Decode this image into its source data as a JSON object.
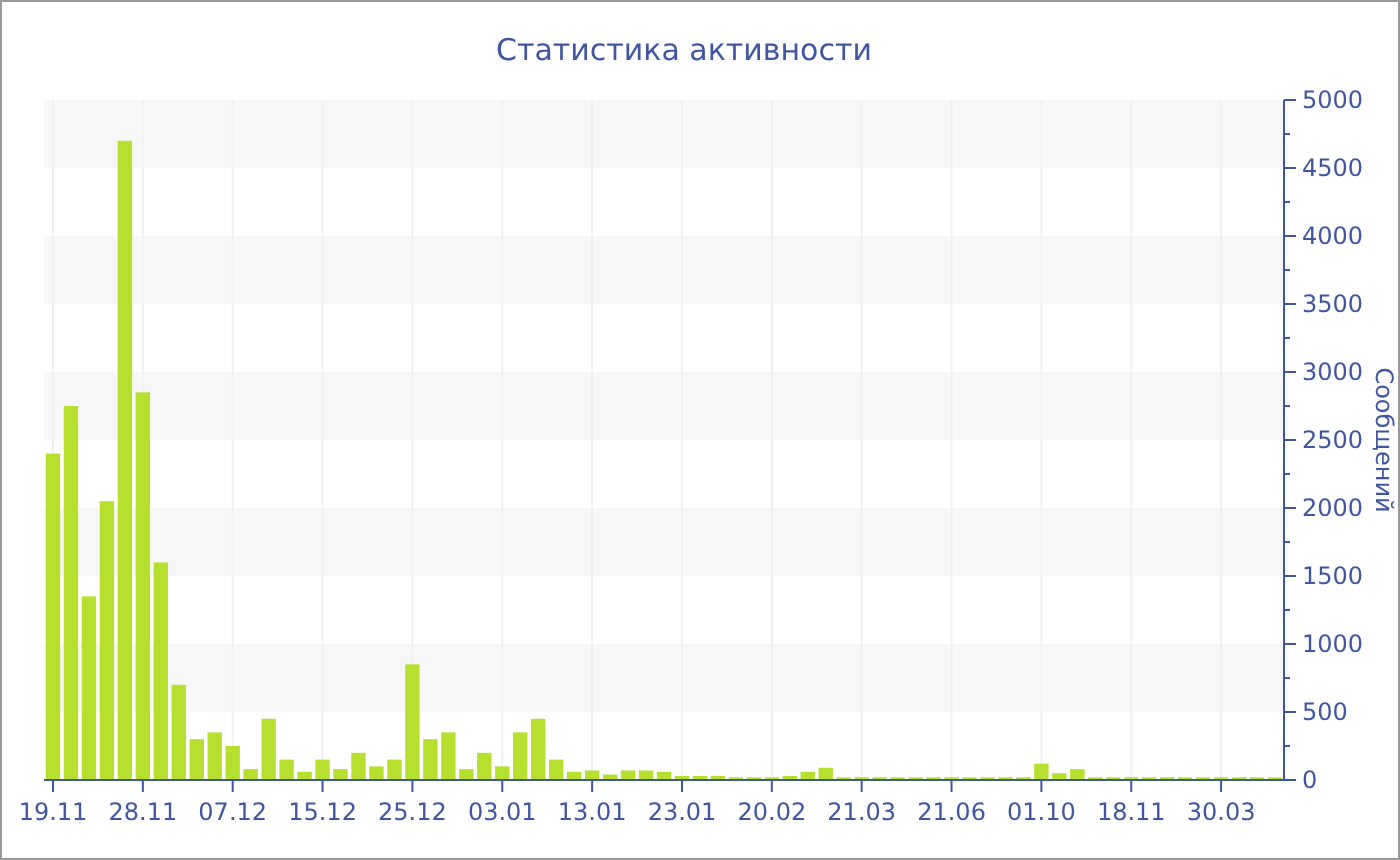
{
  "chart_data": {
    "type": "bar",
    "title": "Статистика активности",
    "ylabel": "Сообщений",
    "categories": [
      "19.11",
      null,
      null,
      null,
      null,
      "28.11",
      null,
      null,
      null,
      null,
      "07.12",
      null,
      null,
      null,
      null,
      "15.12",
      null,
      null,
      null,
      null,
      "25.12",
      null,
      null,
      null,
      null,
      "03.01",
      null,
      null,
      null,
      null,
      "13.01",
      null,
      null,
      null,
      null,
      "23.01",
      null,
      null,
      null,
      null,
      "20.02",
      null,
      null,
      null,
      null,
      "21.03",
      null,
      null,
      null,
      null,
      "21.06",
      null,
      null,
      null,
      null,
      "01.10",
      null,
      null,
      null,
      null,
      "18.11",
      null,
      null,
      null,
      null,
      "30.03",
      null,
      null,
      null
    ],
    "values": [
      2400,
      2750,
      1350,
      2050,
      4700,
      2850,
      1600,
      700,
      300,
      350,
      250,
      80,
      450,
      150,
      60,
      150,
      80,
      200,
      100,
      150,
      850,
      300,
      350,
      80,
      200,
      100,
      350,
      450,
      150,
      60,
      70,
      40,
      70,
      70,
      60,
      30,
      30,
      30,
      20,
      20,
      20,
      30,
      60,
      90,
      20,
      20,
      20,
      20,
      20,
      20,
      20,
      20,
      20,
      20,
      20,
      120,
      50,
      80,
      20,
      20,
      20,
      20,
      20,
      20,
      20,
      20,
      20,
      20,
      20
    ],
    "color": "#b5e02e",
    "ylim": [
      0,
      5000
    ],
    "yticks": [
      0,
      500,
      1000,
      1500,
      2000,
      2500,
      3000,
      3500,
      4000,
      4500,
      5000
    ],
    "grid": true
  }
}
